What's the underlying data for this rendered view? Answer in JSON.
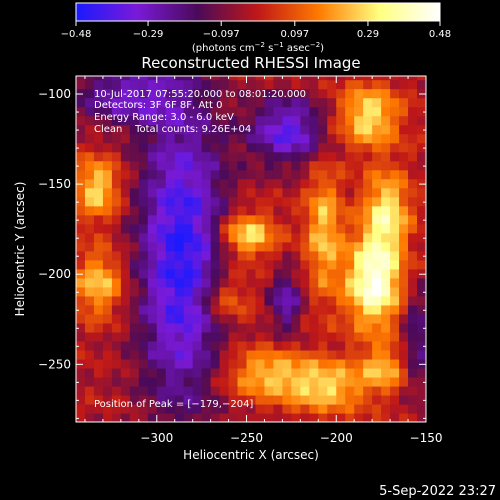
{
  "chart_data": {
    "type": "heatmap",
    "title": "Reconstructed RHESSI Image",
    "xlabel": "Heliocentric X (arcsec)",
    "ylabel": "Heliocentric Y (arcsec)",
    "xlim": [
      -345,
      -150
    ],
    "ylim": [
      -282,
      -90
    ],
    "x_ticks": [
      -300,
      -250,
      -200,
      -150
    ],
    "y_ticks": [
      -100,
      -150,
      -200,
      -250
    ],
    "x_tick_labels": [
      "−300",
      "−250",
      "−200",
      "−150"
    ],
    "y_tick_labels": [
      "−100",
      "−150",
      "−200",
      "−250"
    ],
    "colorbar": {
      "min": -0.48,
      "max": 0.48,
      "tick_values": [
        -0.48,
        -0.29,
        -0.097,
        0.097,
        0.29,
        0.48
      ],
      "tick_labels": [
        "−0.48",
        "−0.29",
        "−0.097",
        "0.097",
        "0.29",
        "0.48"
      ],
      "unit_parts": [
        "(photons cm",
        "−2",
        " s",
        "−1",
        " asec",
        "−2",
        ")"
      ],
      "colors": [
        "#1a1aff",
        "#7a1ad8",
        "#4a0a5a",
        "#c01818",
        "#ff7a00",
        "#ffff80",
        "#ffffff"
      ]
    },
    "annotations": [
      "10-Jul-2017 07:55:20.000 to 08:01:20.000",
      "Detectors: 3F 6F 8F, Att 0",
      "Energy Range: 3.0 - 6.0 keV",
      "Clean    Total counts: 9.26E+04"
    ],
    "peak_label": "Position of Peak = [−179,−204]",
    "peak": [
      -179,
      -204
    ],
    "grid": false,
    "grid_step_arcsec": 5,
    "sources": [
      {
        "x": -179,
        "y": -204,
        "amp": 0.48,
        "sx": 11,
        "sy": 18
      },
      {
        "x": -172,
        "y": -165,
        "amp": 0.33,
        "sx": 9,
        "sy": 16
      },
      {
        "x": -182,
        "y": -112,
        "amp": 0.33,
        "sx": 12,
        "sy": 12
      },
      {
        "x": -207,
        "y": -175,
        "amp": 0.27,
        "sx": 7,
        "sy": 25
      },
      {
        "x": -250,
        "y": -178,
        "amp": 0.34,
        "sx": 11,
        "sy": 9
      },
      {
        "x": -262,
        "y": -213,
        "amp": 0.22,
        "sx": 10,
        "sy": 10
      },
      {
        "x": -240,
        "y": -255,
        "amp": 0.26,
        "sx": 17,
        "sy": 10
      },
      {
        "x": -205,
        "y": -262,
        "amp": 0.29,
        "sx": 16,
        "sy": 10
      },
      {
        "x": -173,
        "y": -252,
        "amp": 0.23,
        "sx": 9,
        "sy": 9
      },
      {
        "x": -333,
        "y": -152,
        "amp": 0.31,
        "sx": 9,
        "sy": 12
      },
      {
        "x": -332,
        "y": -205,
        "amp": 0.28,
        "sx": 10,
        "sy": 13
      },
      {
        "x": -286,
        "y": -190,
        "amp": -0.43,
        "sx": 17,
        "sy": 60
      },
      {
        "x": -228,
        "y": -215,
        "amp": -0.27,
        "sx": 6,
        "sy": 12
      },
      {
        "x": -317,
        "y": -100,
        "amp": -0.26,
        "sx": 22,
        "sy": 12
      },
      {
        "x": -227,
        "y": -120,
        "amp": -0.35,
        "sx": 15,
        "sy": 13
      },
      {
        "x": -155,
        "y": -235,
        "amp": -0.2,
        "sx": 6,
        "sy": 22
      }
    ]
  },
  "footer": {
    "timestamp": "5-Sep-2022 23:27"
  }
}
